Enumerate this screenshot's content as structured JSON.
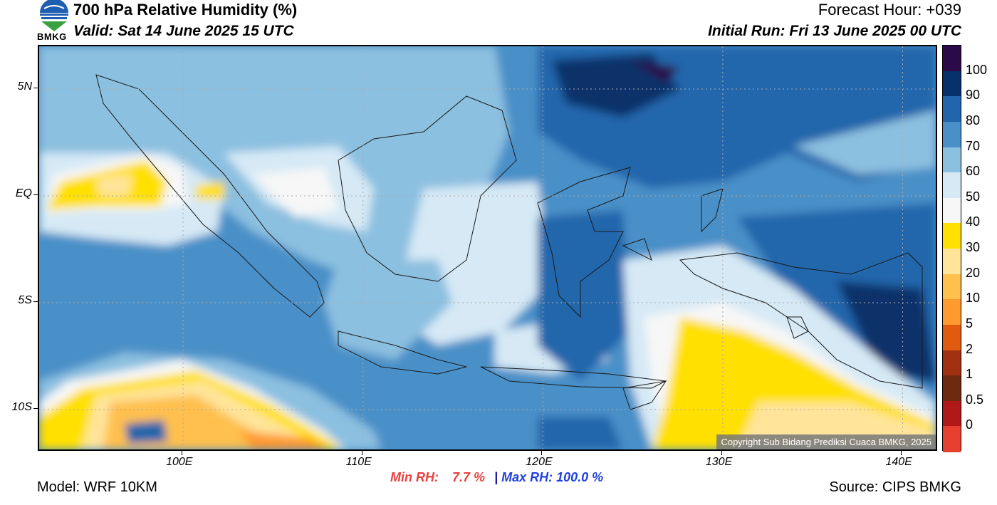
{
  "header": {
    "logo_text": "BMKG",
    "title": "700 hPa Relative Humidity (%)",
    "valid": "Valid: Sat 14 June 2025 15 UTC",
    "forecast_hour": "Forecast Hour: +039",
    "initial_run": "Initial Run: Fri 13 June 2025 00 UTC"
  },
  "map": {
    "lat_labels": [
      "5N",
      "EQ",
      "5S",
      "10S"
    ],
    "lon_labels": [
      "100E",
      "110E",
      "120E",
      "130E",
      "140E"
    ],
    "lat_values": [
      5,
      0,
      -5,
      -10
    ],
    "lon_values": [
      100,
      110,
      120,
      130,
      140
    ],
    "extent": {
      "lon_min": 92,
      "lon_max": 142,
      "lat_min": -12,
      "lat_max": 7
    },
    "copyright": "Copyright Sub Bidang Prediksi Cuaca BMKG, 2025"
  },
  "colorbar": {
    "labels": [
      "100",
      "90",
      "80",
      "70",
      "60",
      "50",
      "40",
      "30",
      "20",
      "10",
      "5",
      "2",
      "1",
      "0.5",
      "0"
    ],
    "colors": [
      "#2c0a4a",
      "#08306b",
      "#2166ac",
      "#4a90c8",
      "#8cc0e0",
      "#d6e9f5",
      "#f7f7f7",
      "#ffe000",
      "#ffe49a",
      "#ffc04d",
      "#ff9a2e",
      "#e05a10",
      "#a03010",
      "#6e2a10",
      "#b01818",
      "#e84030"
    ]
  },
  "footer": {
    "model": "Model: WRF 10KM",
    "min_rh_label": "Min RH:",
    "min_rh_value": "7.7 %",
    "separator": "|",
    "max_rh_label": "Max RH:",
    "max_rh_value": "100.0 %",
    "source": "Source: CIPS BMKG"
  }
}
